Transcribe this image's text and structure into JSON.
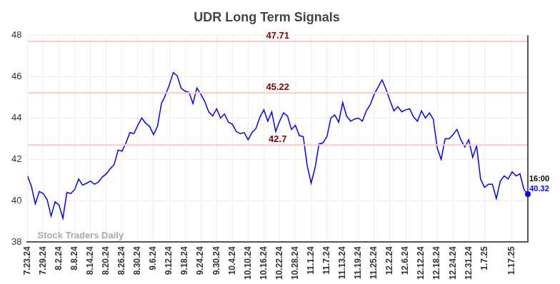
{
  "chart_data": {
    "type": "line",
    "title": "UDR Long Term Signals",
    "categories": [
      "7.23.24",
      null,
      null,
      null,
      "7.29.24",
      null,
      null,
      null,
      "8.2.24",
      null,
      null,
      null,
      "8.8.24",
      null,
      null,
      null,
      "8.14.24",
      null,
      null,
      null,
      "8.20.24",
      null,
      null,
      null,
      "8.26.24",
      null,
      null,
      null,
      "8.30.24",
      null,
      null,
      null,
      "9.6.24",
      null,
      null,
      null,
      "9.12.24",
      null,
      null,
      null,
      "9.18.24",
      null,
      null,
      null,
      "9.24.24",
      null,
      null,
      null,
      "9.30.24",
      null,
      null,
      null,
      "10.4.24",
      null,
      null,
      null,
      "10.10.24",
      null,
      null,
      null,
      "10.16.24",
      null,
      null,
      null,
      "10.22.24",
      null,
      null,
      null,
      "10.28.24",
      null,
      null,
      null,
      "11.1.24",
      null,
      null,
      null,
      "11.7.24",
      null,
      null,
      null,
      "11.13.24",
      null,
      null,
      null,
      "11.19.24",
      null,
      null,
      null,
      "11.25.24",
      null,
      null,
      null,
      "12.2.24",
      null,
      null,
      null,
      "12.6.24",
      null,
      null,
      null,
      "12.12.24",
      null,
      null,
      null,
      "12.18.24",
      null,
      null,
      null,
      "12.24.24",
      null,
      null,
      null,
      "12.31.24",
      null,
      null,
      null,
      "1.7.25",
      null,
      null,
      null,
      null,
      null,
      null,
      "1.17.25",
      null,
      null,
      null,
      null
    ],
    "values": [
      41.2,
      40.7,
      39.85,
      40.45,
      40.35,
      40.05,
      39.25,
      39.95,
      39.8,
      39.15,
      40.4,
      40.35,
      40.55,
      41.05,
      40.75,
      40.85,
      40.95,
      40.8,
      40.9,
      41.15,
      41.3,
      41.55,
      41.75,
      42.45,
      42.4,
      42.8,
      43.3,
      43.25,
      43.65,
      44.0,
      43.75,
      43.6,
      43.2,
      43.6,
      44.7,
      45.1,
      45.6,
      46.2,
      46.05,
      45.45,
      45.3,
      45.25,
      44.7,
      45.45,
      45.15,
      44.8,
      44.3,
      44.1,
      44.45,
      44.0,
      44.2,
      43.8,
      43.7,
      43.35,
      43.25,
      43.3,
      42.95,
      43.3,
      43.5,
      44.05,
      44.4,
      43.85,
      44.3,
      43.35,
      43.85,
      44.25,
      44.1,
      43.45,
      43.65,
      43.15,
      43.1,
      41.7,
      40.85,
      41.6,
      42.75,
      42.8,
      43.1,
      44.0,
      44.15,
      43.8,
      44.75,
      44.1,
      43.85,
      43.95,
      44.0,
      43.85,
      44.35,
      44.65,
      45.15,
      45.5,
      45.85,
      45.4,
      44.85,
      44.35,
      44.55,
      44.3,
      44.4,
      44.45,
      44.05,
      43.85,
      44.35,
      44.0,
      44.25,
      43.95,
      42.55,
      42.0,
      43.0,
      43.0,
      43.2,
      43.45,
      42.95,
      42.6,
      42.95,
      42.1,
      42.65,
      41.05,
      40.65,
      40.8,
      40.8,
      40.1,
      40.95,
      41.2,
      41.05,
      41.4,
      41.2,
      41.3,
      40.55,
      40.32
    ],
    "color": "#0000ff",
    "ylim": [
      38,
      48
    ],
    "yticks": [
      38,
      40,
      42,
      44,
      46,
      48
    ],
    "grid": true,
    "reference_lines": [
      47.71,
      45.22,
      42.7
    ],
    "last_point_time": "16:00",
    "watermark": "Stock Traders Daily"
  }
}
